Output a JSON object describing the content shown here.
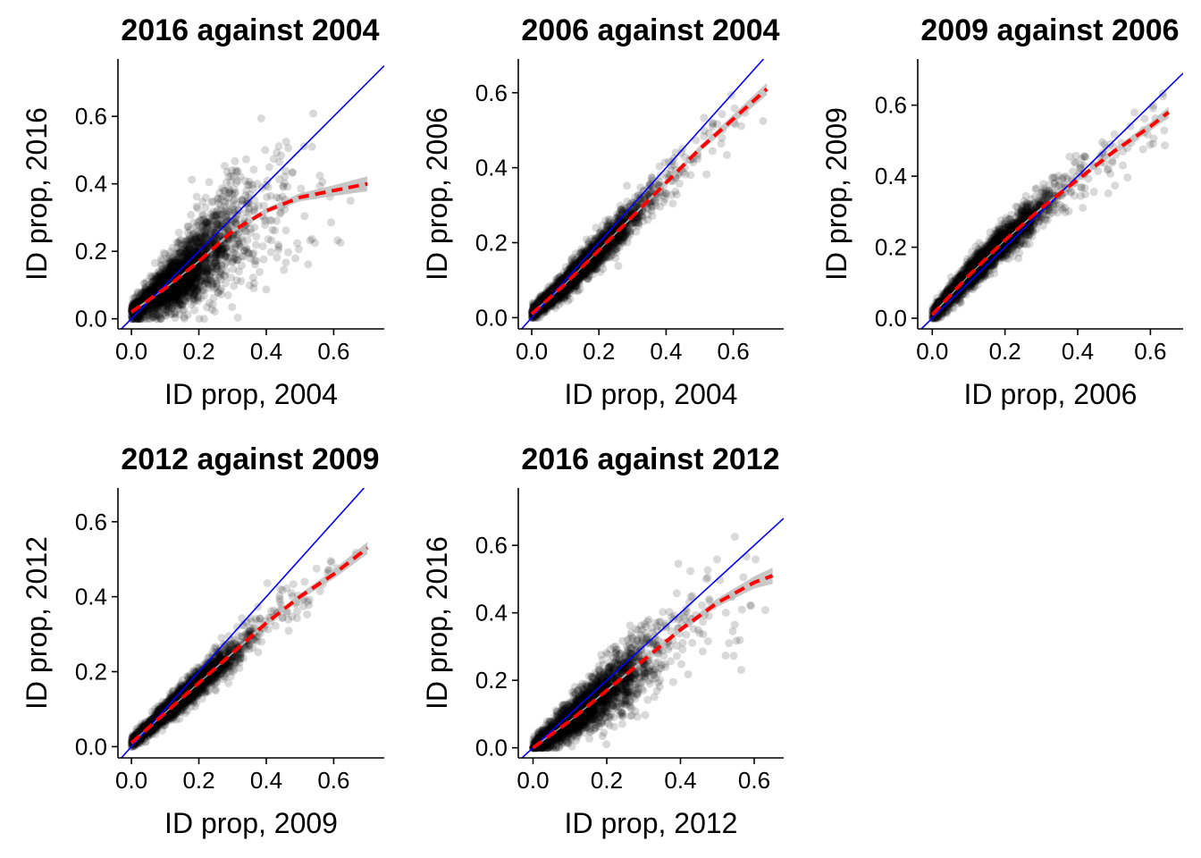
{
  "colors": {
    "points": "#000000",
    "identity_line": "#0000ff",
    "fit_line": "#ff0000",
    "confidence_band": "#bdbdbd"
  },
  "chart_data": [
    {
      "type": "scatter",
      "title": "2016 against 2004",
      "xlabel": "ID prop, 2004",
      "ylabel": "ID prop, 2016",
      "xlim": [
        -0.04,
        0.75
      ],
      "ylim": [
        -0.03,
        0.77
      ],
      "xticks": [
        "0.0",
        "0.2",
        "0.4",
        "0.6"
      ],
      "yticks": [
        "0.0",
        "0.2",
        "0.4",
        "0.6"
      ],
      "points_summary": {
        "count": "many (thousands)",
        "opacity": 0.15,
        "spread": "wide, strong vertical scatter above 0.2"
      },
      "identity_line": {
        "slope": 1,
        "intercept": 0
      },
      "fit_curve": {
        "style": "dashed",
        "points": [
          [
            0.0,
            0.02
          ],
          [
            0.1,
            0.09
          ],
          [
            0.2,
            0.17
          ],
          [
            0.3,
            0.26
          ],
          [
            0.4,
            0.32
          ],
          [
            0.5,
            0.36
          ],
          [
            0.6,
            0.38
          ],
          [
            0.7,
            0.4
          ]
        ]
      },
      "band_halfwidth": [
        0.004,
        0.003,
        0.003,
        0.005,
        0.008,
        0.012,
        0.016,
        0.022
      ]
    },
    {
      "type": "scatter",
      "title": "2006 against 2004",
      "xlabel": "ID prop, 2004",
      "ylabel": "ID prop, 2006",
      "xlim": [
        -0.04,
        0.75
      ],
      "ylim": [
        -0.03,
        0.69
      ],
      "xticks": [
        "0.0",
        "0.2",
        "0.4",
        "0.6"
      ],
      "yticks": [
        "0.0",
        "0.2",
        "0.4",
        "0.6"
      ],
      "points_summary": {
        "count": "many (thousands)",
        "opacity": 0.15,
        "spread": "tight, close to identity"
      },
      "identity_line": {
        "slope": 1,
        "intercept": 0
      },
      "fit_curve": {
        "style": "dashed",
        "points": [
          [
            0.0,
            0.01
          ],
          [
            0.1,
            0.09
          ],
          [
            0.2,
            0.18
          ],
          [
            0.3,
            0.27
          ],
          [
            0.4,
            0.36
          ],
          [
            0.5,
            0.45
          ],
          [
            0.6,
            0.53
          ],
          [
            0.7,
            0.61
          ]
        ]
      },
      "band_halfwidth": [
        0.003,
        0.002,
        0.002,
        0.003,
        0.005,
        0.008,
        0.012,
        0.016
      ]
    },
    {
      "type": "scatter",
      "title": "2009 against 2006",
      "xlabel": "ID prop, 2006",
      "ylabel": "ID prop, 2009",
      "xlim": [
        -0.04,
        0.69
      ],
      "ylim": [
        -0.03,
        0.73
      ],
      "xticks": [
        "0.0",
        "0.2",
        "0.4",
        "0.6"
      ],
      "yticks": [
        "0.0",
        "0.2",
        "0.4",
        "0.6"
      ],
      "points_summary": {
        "count": "many (thousands)",
        "opacity": 0.15,
        "spread": "tight, slightly above identity at low values"
      },
      "identity_line": {
        "slope": 1,
        "intercept": 0
      },
      "fit_curve": {
        "style": "dashed",
        "points": [
          [
            0.0,
            0.01
          ],
          [
            0.1,
            0.12
          ],
          [
            0.2,
            0.22
          ],
          [
            0.3,
            0.31
          ],
          [
            0.4,
            0.39
          ],
          [
            0.5,
            0.47
          ],
          [
            0.6,
            0.54
          ],
          [
            0.65,
            0.58
          ]
        ]
      },
      "band_halfwidth": [
        0.003,
        0.002,
        0.002,
        0.003,
        0.005,
        0.008,
        0.012,
        0.015
      ]
    },
    {
      "type": "scatter",
      "title": "2012 against 2009",
      "xlabel": "ID prop, 2009",
      "ylabel": "ID prop, 2012",
      "xlim": [
        -0.04,
        0.75
      ],
      "ylim": [
        -0.03,
        0.69
      ],
      "xticks": [
        "0.0",
        "0.2",
        "0.4",
        "0.6"
      ],
      "yticks": [
        "0.0",
        "0.2",
        "0.4",
        "0.6"
      ],
      "points_summary": {
        "count": "many (thousands)",
        "opacity": 0.15,
        "spread": "tight, falls below identity above 0.3"
      },
      "identity_line": {
        "slope": 1,
        "intercept": 0
      },
      "fit_curve": {
        "style": "dashed",
        "points": [
          [
            0.0,
            0.01
          ],
          [
            0.1,
            0.09
          ],
          [
            0.2,
            0.17
          ],
          [
            0.3,
            0.25
          ],
          [
            0.4,
            0.33
          ],
          [
            0.5,
            0.4
          ],
          [
            0.6,
            0.46
          ],
          [
            0.7,
            0.53
          ]
        ]
      },
      "band_halfwidth": [
        0.003,
        0.002,
        0.002,
        0.003,
        0.005,
        0.008,
        0.012,
        0.016
      ]
    },
    {
      "type": "scatter",
      "title": "2016 against 2012",
      "xlabel": "ID prop, 2012",
      "ylabel": "ID prop, 2016",
      "xlim": [
        -0.04,
        0.68
      ],
      "ylim": [
        -0.03,
        0.77
      ],
      "xticks": [
        "0.0",
        "0.2",
        "0.4",
        "0.6"
      ],
      "yticks": [
        "0.0",
        "0.2",
        "0.4",
        "0.6"
      ],
      "points_summary": {
        "count": "many (thousands)",
        "opacity": 0.15,
        "spread": "wide, strong vertical scatter 0.1–0.4"
      },
      "identity_line": {
        "slope": 1,
        "intercept": 0
      },
      "fit_curve": {
        "style": "dashed",
        "points": [
          [
            0.0,
            0.0
          ],
          [
            0.1,
            0.08
          ],
          [
            0.2,
            0.17
          ],
          [
            0.3,
            0.26
          ],
          [
            0.4,
            0.35
          ],
          [
            0.5,
            0.43
          ],
          [
            0.6,
            0.49
          ],
          [
            0.65,
            0.51
          ]
        ]
      },
      "band_halfwidth": [
        0.003,
        0.002,
        0.003,
        0.005,
        0.008,
        0.012,
        0.018,
        0.024
      ]
    }
  ]
}
